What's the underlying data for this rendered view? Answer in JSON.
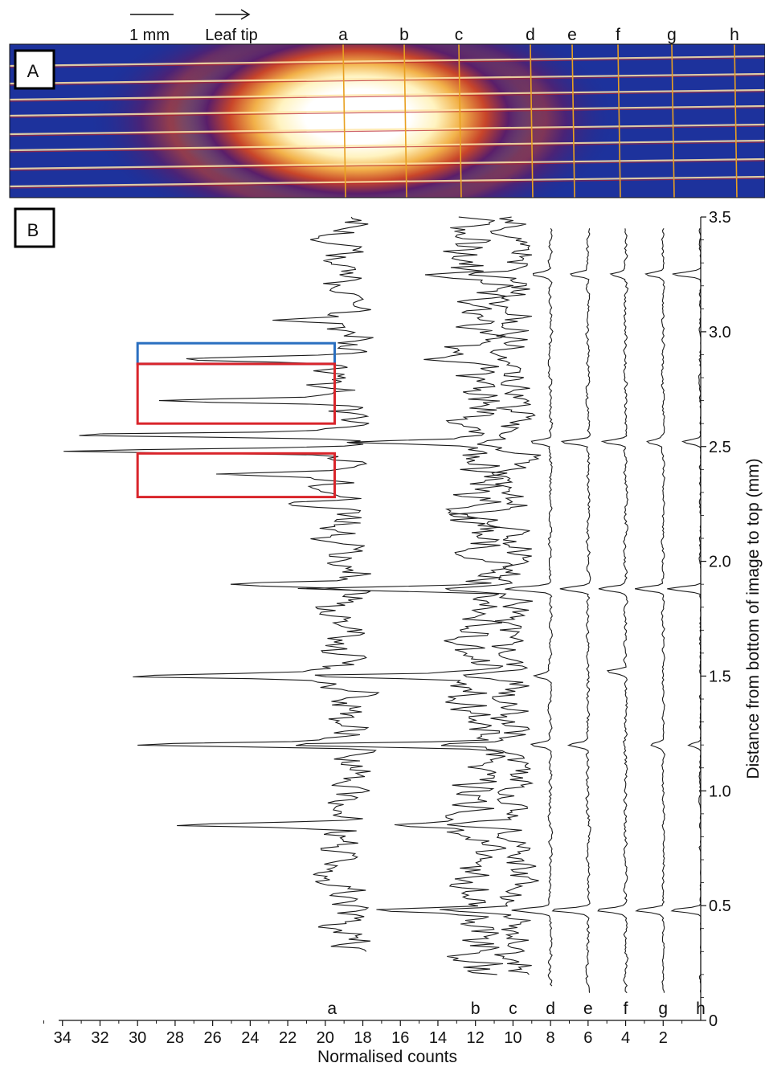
{
  "figure": {
    "panel_a": {
      "label": "A",
      "scale_bar_label": "1 mm",
      "direction_label": "Leaf tip",
      "transect_labels": [
        "a",
        "b",
        "c",
        "d",
        "e",
        "f",
        "g",
        "h"
      ],
      "colors": {
        "background": "#1a2f96",
        "hot": "#ffffff",
        "mid": "#e8a030",
        "low": "#b8202a",
        "transect": "#e8a020"
      }
    },
    "panel_b": {
      "label": "B",
      "highlight_colors": {
        "blue_box": "#2a6fc0",
        "red_box": "#d9252b"
      }
    }
  },
  "chart_data": {
    "type": "line",
    "orientation": "profiles plotted vertically (counts on x, distance on y)",
    "xlabel": "Normalised counts",
    "ylabel": "Distance from bottom of image to top (mm)",
    "x_reversed": true,
    "xlim": [
      0,
      35
    ],
    "ylim": [
      0,
      3.5
    ],
    "x_ticks": [
      34,
      32,
      30,
      28,
      26,
      24,
      22,
      20,
      18,
      16,
      14,
      12,
      10,
      8,
      6,
      4,
      2
    ],
    "x_tick_labels": [
      "34",
      "32",
      "30",
      "28",
      "26",
      "24",
      "22",
      "20",
      "18",
      "16",
      "14",
      "12",
      "10",
      "8",
      "6",
      "4",
      "2"
    ],
    "y_ticks": [
      0,
      0.5,
      1.0,
      1.5,
      2.0,
      2.5,
      3.0,
      3.5
    ],
    "y_tick_labels": [
      "0",
      "0.5",
      "1.0",
      "1.5",
      "2.0",
      "2.5",
      "3.0",
      "3.5"
    ],
    "series_offsets_labels": [
      "a",
      "b",
      "c",
      "d",
      "e",
      "f",
      "g",
      "h"
    ],
    "series": [
      {
        "name": "a",
        "baseline": 19.0,
        "noise": 1.2,
        "y_range": [
          0.3,
          3.5
        ],
        "peaks": [
          [
            0.85,
            27.5
          ],
          [
            1.2,
            29.5
          ],
          [
            1.5,
            31.0
          ],
          [
            1.9,
            24.0
          ],
          [
            2.25,
            22.5
          ],
          [
            2.38,
            27.0
          ],
          [
            2.48,
            34.5
          ],
          [
            2.55,
            34.5
          ],
          [
            2.7,
            28.5
          ],
          [
            2.88,
            28.5
          ],
          [
            3.05,
            23.5
          ]
        ]
      },
      {
        "name": "b",
        "baseline": 12.0,
        "noise": 1.2,
        "y_range": [
          0.2,
          3.5
        ],
        "peaks": [
          [
            0.48,
            16.5
          ],
          [
            0.85,
            18.0
          ],
          [
            1.2,
            22.0
          ],
          [
            1.5,
            20.0
          ],
          [
            1.88,
            20.5
          ],
          [
            2.52,
            18.5
          ],
          [
            2.88,
            16.0
          ],
          [
            3.25,
            14.0
          ]
        ]
      },
      {
        "name": "c",
        "baseline": 10.0,
        "noise": 0.9,
        "y_range": [
          0.2,
          3.5
        ],
        "peaks": [
          [
            0.48,
            13.5
          ],
          [
            0.85,
            13.0
          ],
          [
            1.2,
            13.5
          ],
          [
            1.5,
            12.5
          ],
          [
            1.88,
            14.0
          ],
          [
            2.2,
            13.0
          ],
          [
            2.52,
            12.0
          ],
          [
            3.25,
            11.5
          ]
        ]
      },
      {
        "name": "d",
        "baseline": 8.0,
        "noise": 0.2,
        "y_range": [
          0.15,
          3.45
        ],
        "peaks": [
          [
            0.48,
            10.0
          ],
          [
            1.2,
            9.0
          ],
          [
            1.5,
            8.8
          ],
          [
            1.88,
            10.5
          ],
          [
            2.52,
            9.0
          ],
          [
            3.25,
            9.0
          ]
        ]
      },
      {
        "name": "e",
        "baseline": 6.0,
        "noise": 0.2,
        "y_range": [
          0.12,
          3.45
        ],
        "peaks": [
          [
            0.48,
            8.0
          ],
          [
            1.2,
            7.0
          ],
          [
            1.88,
            7.5
          ],
          [
            2.52,
            7.5
          ],
          [
            3.25,
            7.0
          ]
        ]
      },
      {
        "name": "f",
        "baseline": 4.0,
        "noise": 0.2,
        "y_range": [
          0.12,
          3.45
        ],
        "peaks": [
          [
            0.48,
            5.5
          ],
          [
            1.52,
            5.0
          ],
          [
            1.88,
            5.5
          ],
          [
            2.52,
            5.2
          ],
          [
            3.25,
            4.8
          ]
        ]
      },
      {
        "name": "g",
        "baseline": 2.0,
        "noise": 0.15,
        "y_range": [
          0.12,
          3.45
        ],
        "peaks": [
          [
            0.48,
            3.5
          ],
          [
            1.2,
            2.7
          ],
          [
            1.88,
            3.5
          ],
          [
            2.52,
            2.8
          ],
          [
            3.25,
            3.0
          ]
        ]
      },
      {
        "name": "h",
        "baseline": 0.0,
        "noise": 0.15,
        "y_range": [
          0.12,
          3.45
        ],
        "peaks": [
          [
            0.48,
            1.6
          ],
          [
            1.2,
            0.7
          ],
          [
            1.88,
            1.8
          ],
          [
            2.52,
            1.0
          ],
          [
            3.25,
            1.5
          ]
        ]
      }
    ],
    "highlight_boxes": [
      {
        "color": "blue",
        "x_range": [
          19.5,
          30.0
        ],
        "y_range": [
          2.86,
          2.95
        ]
      },
      {
        "color": "red",
        "x_range": [
          19.5,
          30.0
        ],
        "y_range": [
          2.6,
          2.86
        ]
      },
      {
        "color": "red",
        "x_range": [
          19.5,
          30.0
        ],
        "y_range": [
          2.28,
          2.47
        ]
      }
    ]
  }
}
